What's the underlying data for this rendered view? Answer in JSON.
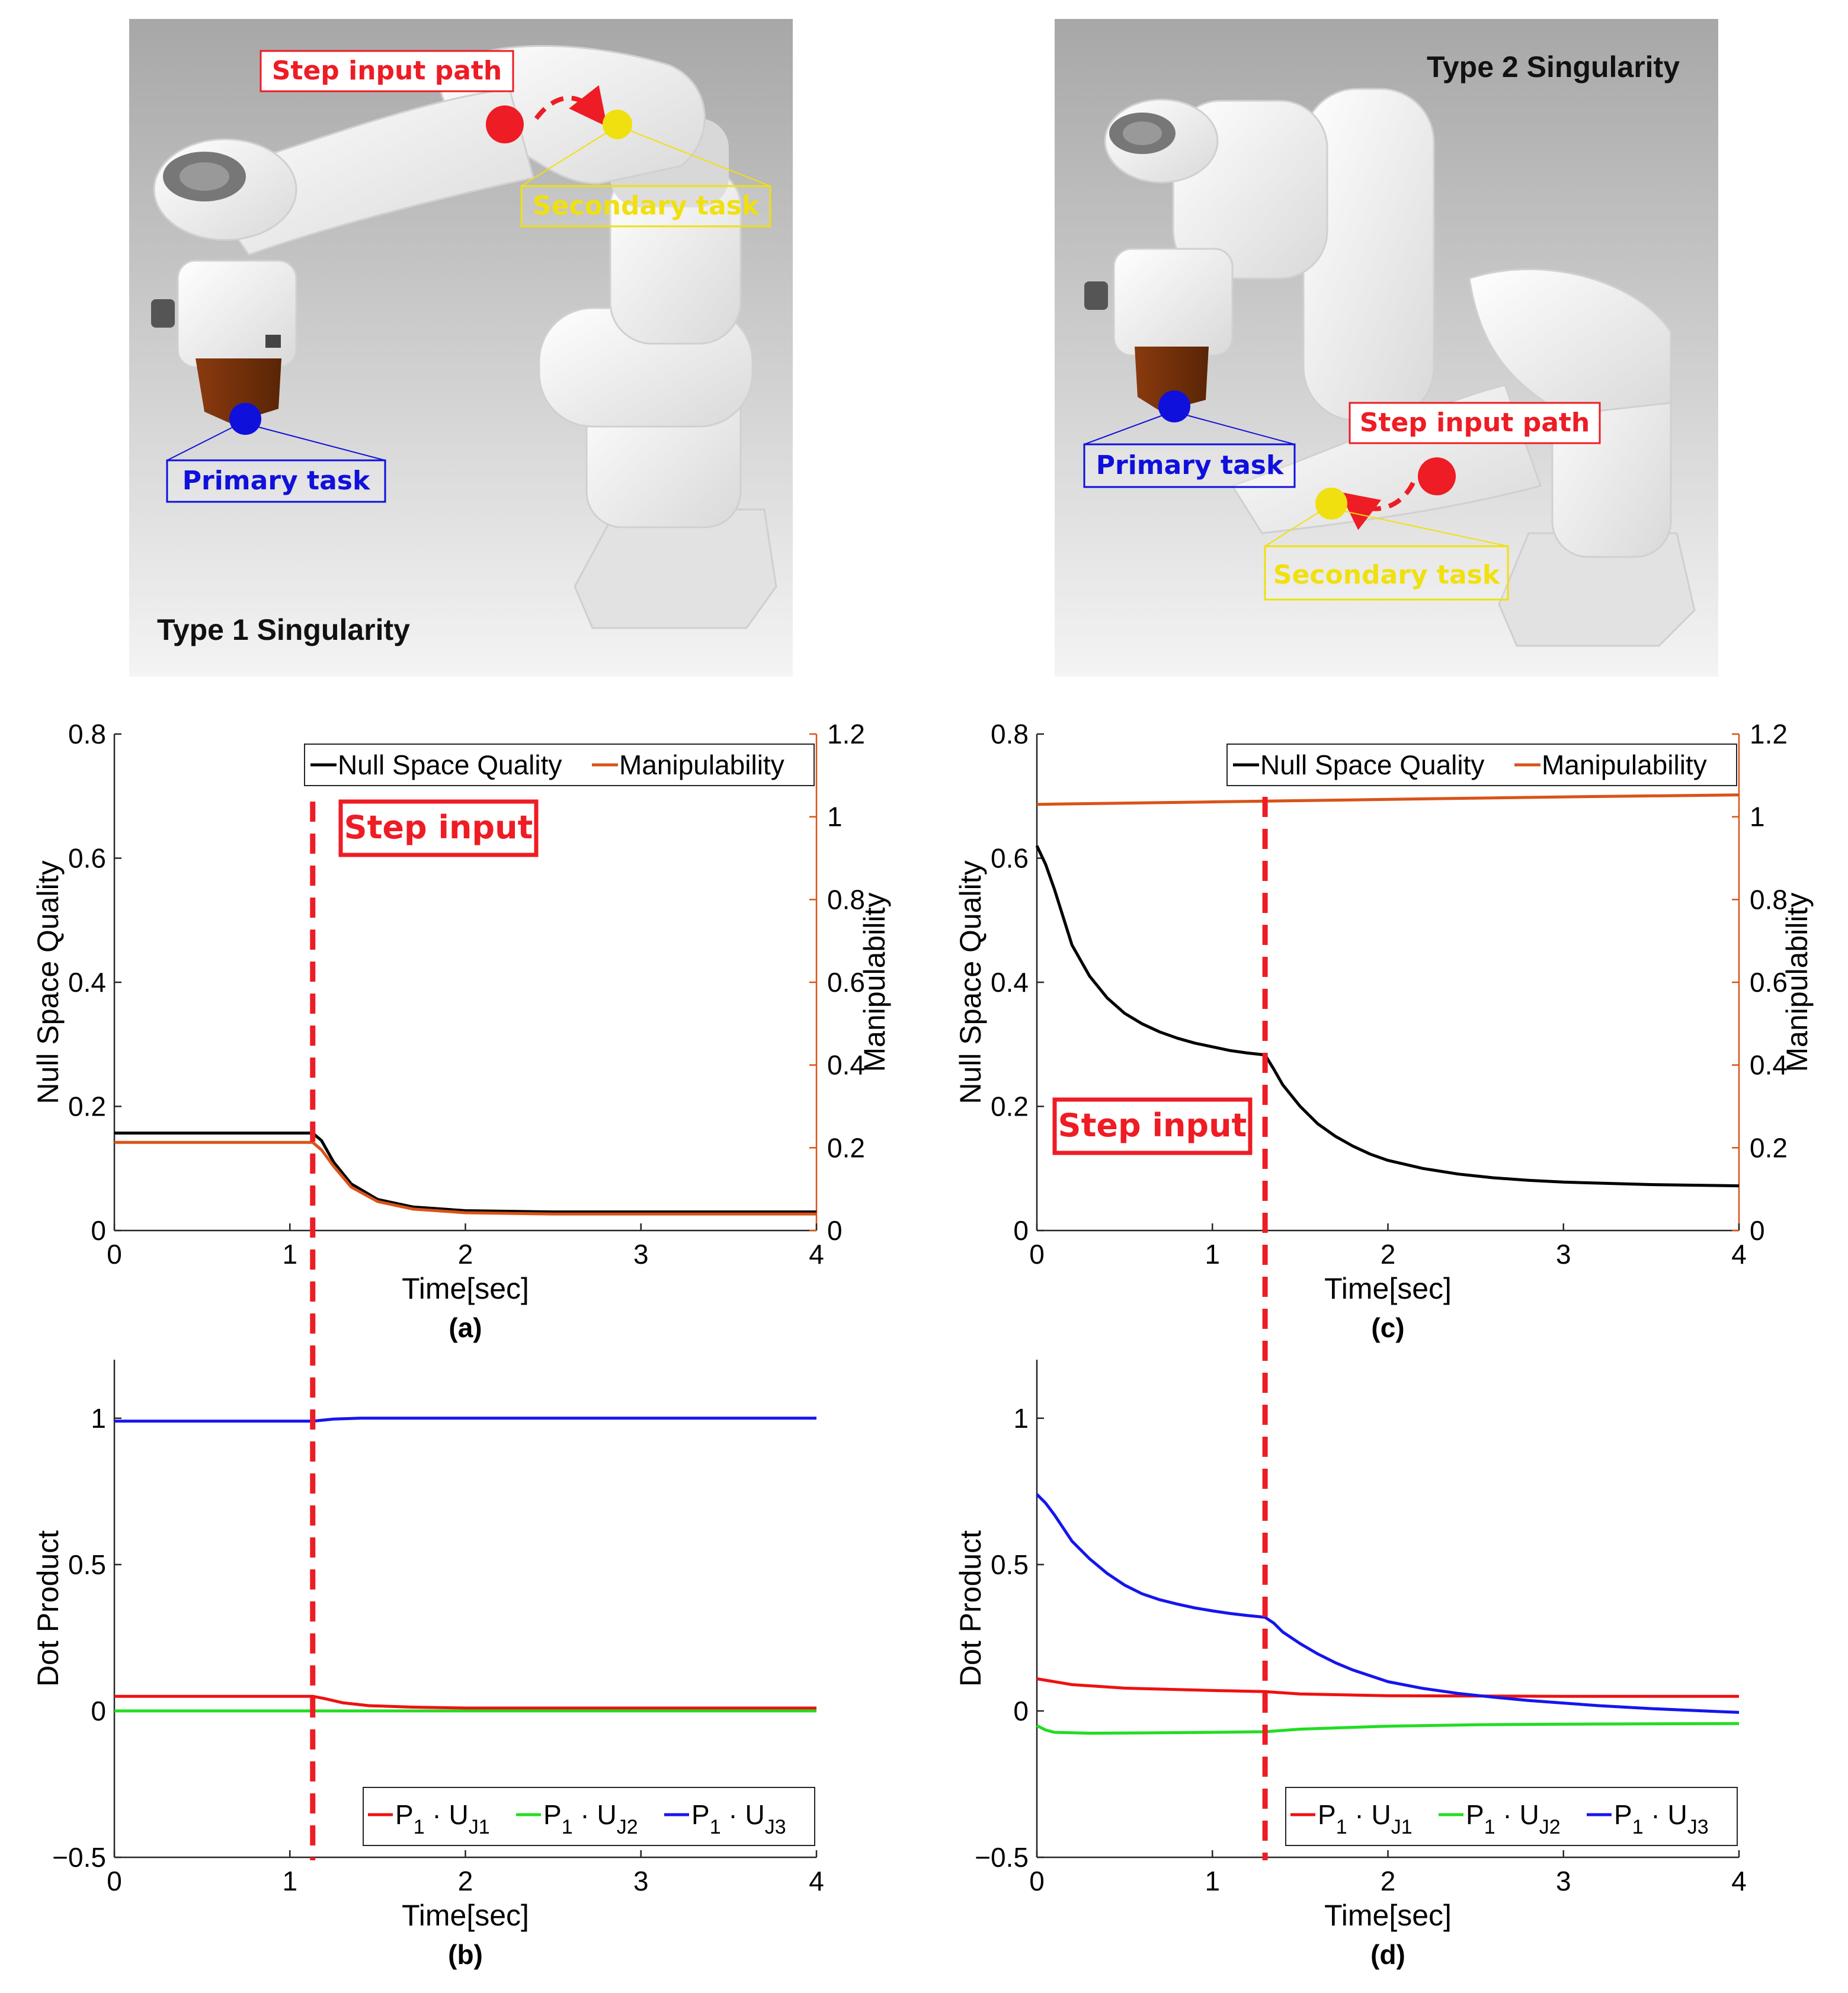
{
  "colors": {
    "black": "#000000",
    "orange": "#D95319",
    "red": "#EE1111",
    "green": "#22DD22",
    "blue": "#1515EE",
    "step_red": "#EE1C24",
    "yellow": "#F0E010",
    "primary_blue": "#1010DD"
  },
  "images": {
    "left": {
      "type_label": "Type 1 Singularity",
      "step_label": "Step input path",
      "secondary_label": "Secondary task",
      "primary_label": "Primary task"
    },
    "right": {
      "type_label": "Type 2 Singularity",
      "step_label": "Step input path",
      "secondary_label": "Secondary task",
      "primary_label": "Primary task"
    }
  },
  "chart_data": [
    {
      "id": "a",
      "caption": "(a)",
      "type": "line",
      "xlabel": "Time[sec]",
      "ylabel": "Null Space Quality",
      "ylabel_right": "Manipulability",
      "xlim": [
        0,
        4
      ],
      "ylim": [
        0,
        0.8
      ],
      "ylim_right": [
        0,
        1.2
      ],
      "xticks": [
        "0",
        "1",
        "2",
        "3",
        "4"
      ],
      "yticks": [
        "0",
        "0.2",
        "0.4",
        "0.6",
        "0.8"
      ],
      "yticks_right": [
        "0",
        "0.2",
        "0.4",
        "0.6",
        "0.8",
        "1",
        "1.2"
      ],
      "legend": [
        "Null Space Quality",
        "Manipulability"
      ],
      "legend_position": "top-right",
      "step_time": 1.13,
      "step_label": "Step input",
      "series": [
        {
          "name": "Null Space Quality",
          "axis": "left",
          "color": "#000000",
          "x": [
            0,
            1.13,
            1.18,
            1.25,
            1.35,
            1.5,
            1.7,
            2.0,
            2.5,
            3.0,
            4.0
          ],
          "y": [
            0.157,
            0.157,
            0.145,
            0.11,
            0.075,
            0.05,
            0.038,
            0.032,
            0.03,
            0.03,
            0.03
          ]
        },
        {
          "name": "Manipulability",
          "axis": "right",
          "color": "#D95319",
          "x": [
            0,
            1.13,
            1.18,
            1.25,
            1.35,
            1.5,
            1.7,
            2.0,
            2.5,
            3.0,
            4.0
          ],
          "y": [
            0.213,
            0.213,
            0.195,
            0.155,
            0.105,
            0.07,
            0.052,
            0.043,
            0.04,
            0.04,
            0.04
          ]
        }
      ]
    },
    {
      "id": "b",
      "caption": "(b)",
      "type": "line",
      "xlabel": "Time[sec]",
      "ylabel": "Dot Product",
      "xlim": [
        0,
        4
      ],
      "ylim": [
        -0.5,
        1.2
      ],
      "xticks": [
        "0",
        "1",
        "2",
        "3",
        "4"
      ],
      "yticks": [
        "-0.5",
        "0",
        "0.5",
        "1"
      ],
      "legend_position": "bottom-right",
      "step_time": 1.13,
      "series": [
        {
          "name": "P1 · UJ1",
          "color": "#EE1111",
          "x": [
            0,
            1.13,
            1.2,
            1.3,
            1.45,
            1.7,
            2.0,
            4.0
          ],
          "y": [
            0.05,
            0.05,
            0.042,
            0.028,
            0.018,
            0.013,
            0.01,
            0.01
          ]
        },
        {
          "name": "P1 · UJ2",
          "color": "#22DD22",
          "x": [
            0,
            1.13,
            2.0,
            4.0
          ],
          "y": [
            0.0,
            0.0,
            0.0,
            0.0
          ]
        },
        {
          "name": "P1 · UJ3",
          "color": "#1515EE",
          "x": [
            0,
            1.13,
            1.25,
            1.4,
            1.7,
            2.0,
            4.0
          ],
          "y": [
            0.99,
            0.99,
            0.997,
            1.0,
            1.0,
            1.0,
            1.0
          ]
        }
      ],
      "legend": [
        {
          "p": "P",
          "ps": "1",
          "u": "U",
          "us": "J1"
        },
        {
          "p": "P",
          "ps": "1",
          "u": "U",
          "us": "J2"
        },
        {
          "p": "P",
          "ps": "1",
          "u": "U",
          "us": "J3"
        }
      ],
      "legend_dot": "·"
    },
    {
      "id": "c",
      "caption": "(c)",
      "type": "line",
      "xlabel": "Time[sec]",
      "ylabel": "Null Space Quality",
      "ylabel_right": "Manipulability",
      "xlim": [
        0,
        4
      ],
      "ylim": [
        0,
        0.8
      ],
      "ylim_right": [
        0,
        1.2
      ],
      "xticks": [
        "0",
        "1",
        "2",
        "3",
        "4"
      ],
      "yticks": [
        "0",
        "0.2",
        "0.4",
        "0.6",
        "0.8"
      ],
      "yticks_right": [
        "0",
        "0.2",
        "0.4",
        "0.6",
        "0.8",
        "1",
        "1.2"
      ],
      "legend": [
        "Null Space Quality",
        "Manipulability"
      ],
      "legend_position": "top-right",
      "step_time": 1.3,
      "step_label": "Step input",
      "series": [
        {
          "name": "Null Space Quality",
          "axis": "left",
          "color": "#000000",
          "x": [
            0,
            0.05,
            0.1,
            0.2,
            0.3,
            0.4,
            0.5,
            0.6,
            0.7,
            0.8,
            0.9,
            1.0,
            1.1,
            1.2,
            1.3,
            1.35,
            1.4,
            1.5,
            1.6,
            1.7,
            1.8,
            1.9,
            2.0,
            2.2,
            2.4,
            2.6,
            2.8,
            3.0,
            3.5,
            4.0
          ],
          "y": [
            0.62,
            0.59,
            0.55,
            0.46,
            0.41,
            0.375,
            0.35,
            0.333,
            0.32,
            0.31,
            0.302,
            0.296,
            0.29,
            0.286,
            0.283,
            0.26,
            0.235,
            0.2,
            0.172,
            0.152,
            0.136,
            0.123,
            0.113,
            0.1,
            0.091,
            0.085,
            0.081,
            0.078,
            0.074,
            0.072
          ]
        },
        {
          "name": "Manipulability",
          "axis": "right",
          "color": "#D95319",
          "x": [
            0,
            1.0,
            2.0,
            3.0,
            4.0
          ],
          "y": [
            1.03,
            1.036,
            1.042,
            1.048,
            1.053
          ]
        }
      ]
    },
    {
      "id": "d",
      "caption": "(d)",
      "type": "line",
      "xlabel": "Time[sec]",
      "ylabel": "Dot Product",
      "xlim": [
        0,
        4
      ],
      "ylim": [
        -0.5,
        1.2
      ],
      "xticks": [
        "0",
        "1",
        "2",
        "3",
        "4"
      ],
      "yticks": [
        "-0.5",
        "0",
        "0.5",
        "1"
      ],
      "legend_position": "bottom-right",
      "step_time": 1.3,
      "series": [
        {
          "name": "P1 · UJ1",
          "color": "#EE1111",
          "x": [
            0,
            0.2,
            0.5,
            1.0,
            1.3,
            1.5,
            2.0,
            3.0,
            4.0
          ],
          "y": [
            0.11,
            0.09,
            0.078,
            0.07,
            0.066,
            0.058,
            0.052,
            0.05,
            0.05
          ]
        },
        {
          "name": "P1 · UJ2",
          "color": "#22DD22",
          "x": [
            0,
            0.05,
            0.1,
            0.3,
            0.6,
            1.0,
            1.3,
            1.5,
            2.0,
            2.5,
            3.0,
            4.0
          ],
          "y": [
            -0.05,
            -0.065,
            -0.073,
            -0.076,
            -0.075,
            -0.073,
            -0.071,
            -0.062,
            -0.052,
            -0.047,
            -0.045,
            -0.043
          ]
        },
        {
          "name": "P1 · UJ3",
          "color": "#1515EE",
          "x": [
            0,
            0.05,
            0.1,
            0.2,
            0.3,
            0.4,
            0.5,
            0.6,
            0.7,
            0.8,
            0.9,
            1.0,
            1.1,
            1.2,
            1.3,
            1.35,
            1.4,
            1.5,
            1.6,
            1.7,
            1.8,
            1.9,
            2.0,
            2.2,
            2.4,
            2.6,
            2.8,
            3.0,
            3.2,
            3.5,
            3.8,
            4.0
          ],
          "y": [
            0.74,
            0.71,
            0.67,
            0.58,
            0.52,
            0.47,
            0.43,
            0.4,
            0.38,
            0.365,
            0.352,
            0.342,
            0.333,
            0.326,
            0.32,
            0.3,
            0.27,
            0.23,
            0.195,
            0.165,
            0.14,
            0.12,
            0.1,
            0.077,
            0.06,
            0.047,
            0.036,
            0.027,
            0.018,
            0.008,
            0.0,
            -0.005
          ]
        }
      ],
      "legend": [
        {
          "p": "P",
          "ps": "1",
          "u": "U",
          "us": "J1"
        },
        {
          "p": "P",
          "ps": "1",
          "u": "U",
          "us": "J2"
        },
        {
          "p": "P",
          "ps": "1",
          "u": "U",
          "us": "J3"
        }
      ],
      "legend_dot": "·"
    }
  ]
}
